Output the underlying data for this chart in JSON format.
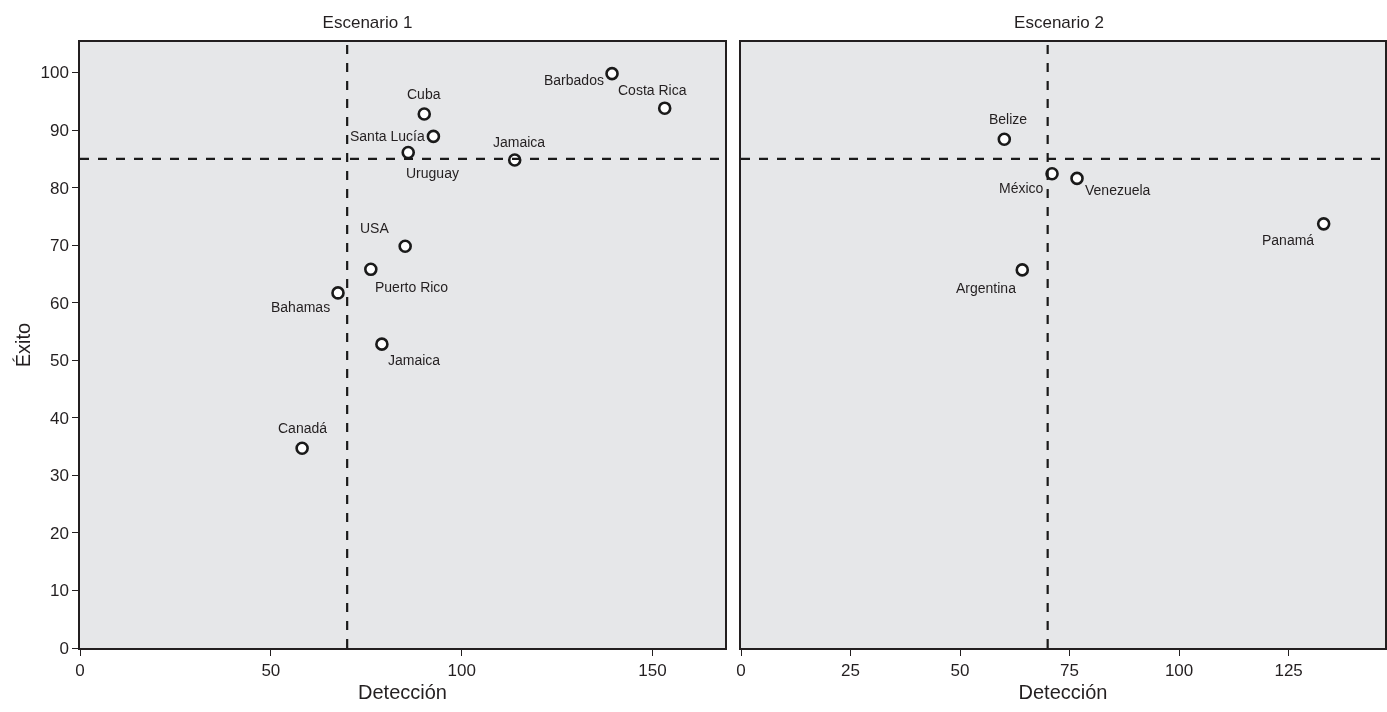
{
  "chart_data": [
    {
      "type": "scatter",
      "title": "Escenario 1",
      "xlabel": "Detección",
      "ylabel": "Éxito",
      "marker": "circle",
      "grid": false,
      "xlim": [
        0,
        169
      ],
      "xticks": [
        0,
        50,
        100,
        150
      ],
      "ylim": [
        0,
        105.3
      ],
      "yticks": [
        0,
        10,
        20,
        30,
        40,
        50,
        60,
        70,
        80,
        90,
        100
      ],
      "series": [
        {
          "color": "#1a1a1a",
          "x": [
            139.4,
            153.2,
            90.2,
            92.6,
            86.0,
            113.9,
            85.2,
            76.2,
            67.6,
            79.1,
            58.2
          ],
          "values": [
            99.8,
            93.8,
            92.8,
            88.9,
            86.1,
            84.8,
            69.8,
            65.8,
            61.7,
            52.8,
            34.7
          ]
        }
      ],
      "ref_lines": [
        {
          "axis": "x",
          "value": 70,
          "line_style": "dashed",
          "color": "#1a1a1a"
        },
        {
          "axis": "y",
          "value": 85,
          "line_style": "dashed",
          "color": "#1a1a1a"
        }
      ],
      "annotations": [
        {
          "text": "Barbados",
          "x": 139.4,
          "y": 99.8
        },
        {
          "text": "Costa Rica",
          "x": 153.2,
          "y": 93.8
        },
        {
          "text": "Cuba",
          "x": 90.2,
          "y": 92.8
        },
        {
          "text": "Santa Lucía",
          "x": 92.6,
          "y": 88.9
        },
        {
          "text": "Uruguay",
          "x": 86.0,
          "y": 86.1
        },
        {
          "text": "Jamaica",
          "x": 113.9,
          "y": 84.8
        },
        {
          "text": "USA",
          "x": 85.2,
          "y": 69.8
        },
        {
          "text": "Puerto Rico",
          "x": 76.2,
          "y": 65.8
        },
        {
          "text": "Bahamas",
          "x": 67.6,
          "y": 61.7
        },
        {
          "text": "Jamaica",
          "x": 79.1,
          "y": 52.8
        },
        {
          "text": "Canadá",
          "x": 58.2,
          "y": 34.7
        }
      ]
    },
    {
      "type": "scatter",
      "title": "Escenario 2",
      "xlabel": "Detección",
      "marker": "circle",
      "grid": false,
      "tick_labels": "x",
      "xlim": [
        0,
        147
      ],
      "xticks": [
        0,
        25,
        50,
        75,
        100,
        125
      ],
      "ylim": [
        0,
        105.3
      ],
      "yticks": [
        0,
        10,
        20,
        30,
        40,
        50,
        60,
        70,
        80,
        90,
        100
      ],
      "series": [
        {
          "color": "#1a1a1a",
          "x": [
            60.1,
            71.0,
            76.7,
            133.0,
            64.2
          ],
          "values": [
            88.4,
            82.4,
            81.6,
            73.7,
            65.7
          ]
        }
      ],
      "ref_lines": [
        {
          "axis": "x",
          "value": 70,
          "line_style": "dashed",
          "color": "#1a1a1a"
        },
        {
          "axis": "y",
          "value": 85,
          "line_style": "dashed",
          "color": "#1a1a1a"
        }
      ],
      "annotations": [
        {
          "text": "Belize",
          "x": 60.1,
          "y": 88.4
        },
        {
          "text": "México",
          "x": 71.0,
          "y": 82.4
        },
        {
          "text": "Venezuela",
          "x": 76.7,
          "y": 81.6
        },
        {
          "text": "Panamá",
          "x": 133.0,
          "y": 73.7
        },
        {
          "text": "Argentina",
          "x": 64.2,
          "y": 65.7
        }
      ]
    }
  ]
}
